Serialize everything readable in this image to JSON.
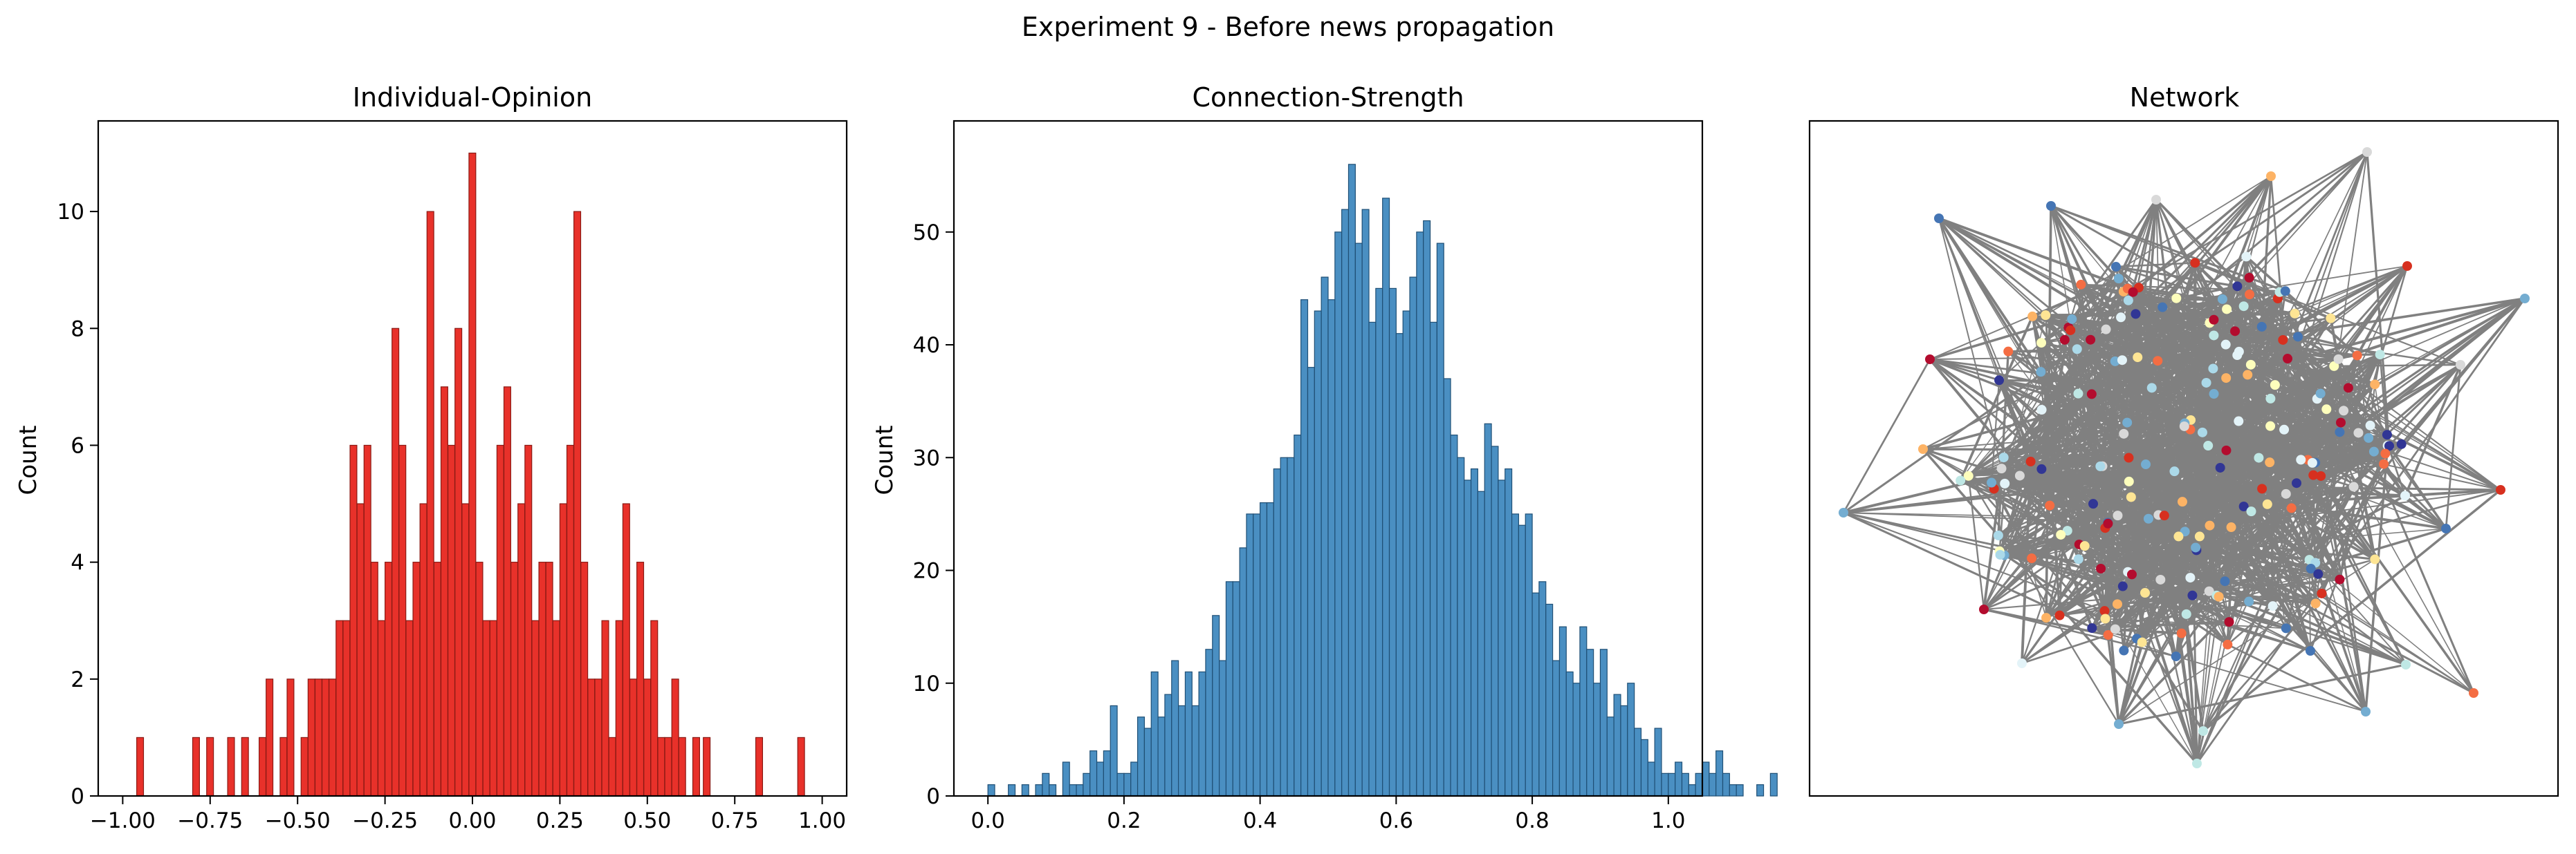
{
  "figure": {
    "title": "Experiment 9 - Before news propagation"
  },
  "colors": {
    "opinion_fill": "#e8312a",
    "opinion_edge": "#8a1a14",
    "strength_fill": "#4a8fc2",
    "strength_edge": "#1f4f75",
    "network_edge": "#808080"
  },
  "chart_data": [
    {
      "type": "bar",
      "title": "Individual-Opinion",
      "xlabel": "",
      "ylabel": "Count",
      "xlim": [
        -1.07,
        1.07
      ],
      "ylim": [
        0,
        11.55
      ],
      "grid": false,
      "bin_width": 0.0195,
      "xticks": [
        -1.0,
        -0.75,
        -0.5,
        -0.25,
        0.0,
        0.25,
        0.5,
        0.75,
        1.0
      ],
      "xtick_labels": [
        "−1.00",
        "−0.75",
        "−0.50",
        "−0.25",
        "0.00",
        "0.25",
        "0.50",
        "0.75",
        "1.00"
      ],
      "yticks": [
        0,
        2,
        4,
        6,
        8,
        10
      ],
      "ytick_labels": [
        "0",
        "2",
        "4",
        "6",
        "8",
        "10"
      ],
      "bins": [
        [
          -0.96,
          1
        ],
        [
          -0.8,
          1
        ],
        [
          -0.76,
          1
        ],
        [
          -0.7,
          1
        ],
        [
          -0.66,
          1
        ],
        [
          -0.61,
          1
        ],
        [
          -0.59,
          2
        ],
        [
          -0.55,
          1
        ],
        [
          -0.53,
          2
        ],
        [
          -0.49,
          1
        ],
        [
          -0.47,
          2
        ],
        [
          -0.45,
          2
        ],
        [
          -0.43,
          2
        ],
        [
          -0.41,
          2
        ],
        [
          -0.39,
          3
        ],
        [
          -0.37,
          3
        ],
        [
          -0.35,
          6
        ],
        [
          -0.33,
          5
        ],
        [
          -0.31,
          6
        ],
        [
          -0.29,
          4
        ],
        [
          -0.27,
          3
        ],
        [
          -0.25,
          4
        ],
        [
          -0.23,
          8
        ],
        [
          -0.21,
          6
        ],
        [
          -0.19,
          3
        ],
        [
          -0.17,
          4
        ],
        [
          -0.15,
          5
        ],
        [
          -0.13,
          10
        ],
        [
          -0.11,
          4
        ],
        [
          -0.09,
          7
        ],
        [
          -0.07,
          6
        ],
        [
          -0.05,
          8
        ],
        [
          -0.03,
          5
        ],
        [
          -0.01,
          11
        ],
        [
          0.01,
          4
        ],
        [
          0.03,
          3
        ],
        [
          0.05,
          3
        ],
        [
          0.07,
          6
        ],
        [
          0.09,
          7
        ],
        [
          0.11,
          4
        ],
        [
          0.13,
          5
        ],
        [
          0.15,
          6
        ],
        [
          0.17,
          3
        ],
        [
          0.19,
          4
        ],
        [
          0.21,
          4
        ],
        [
          0.23,
          3
        ],
        [
          0.25,
          5
        ],
        [
          0.27,
          6
        ],
        [
          0.29,
          10
        ],
        [
          0.31,
          4
        ],
        [
          0.33,
          2
        ],
        [
          0.35,
          2
        ],
        [
          0.37,
          3
        ],
        [
          0.39,
          1
        ],
        [
          0.41,
          3
        ],
        [
          0.43,
          5
        ],
        [
          0.45,
          2
        ],
        [
          0.47,
          4
        ],
        [
          0.49,
          2
        ],
        [
          0.51,
          3
        ],
        [
          0.53,
          1
        ],
        [
          0.55,
          1
        ],
        [
          0.57,
          2
        ],
        [
          0.59,
          1
        ],
        [
          0.63,
          1
        ],
        [
          0.66,
          1
        ],
        [
          0.81,
          1
        ],
        [
          0.93,
          1
        ]
      ]
    },
    {
      "type": "bar",
      "title": "Connection-Strength",
      "xlabel": "",
      "ylabel": "Count",
      "xlim": [
        -0.05,
        1.05
      ],
      "ylim": [
        0,
        59.85
      ],
      "grid": false,
      "bin_width": 0.01,
      "xticks": [
        0.0,
        0.2,
        0.4,
        0.6,
        0.8,
        1.0
      ],
      "xtick_labels": [
        "0.0",
        "0.2",
        "0.4",
        "0.6",
        "0.8",
        "1.0"
      ],
      "yticks": [
        0,
        10,
        20,
        30,
        40,
        50
      ],
      "ytick_labels": [
        "0",
        "10",
        "20",
        "30",
        "40",
        "50"
      ],
      "bin_start": 0.0,
      "counts": [
        1,
        0,
        0,
        1,
        0,
        1,
        0,
        1,
        2,
        1,
        0,
        3,
        1,
        1,
        2,
        4,
        3,
        4,
        8,
        2,
        2,
        3,
        7,
        6,
        11,
        7,
        9,
        12,
        8,
        11,
        8,
        11,
        13,
        16,
        12,
        19,
        19,
        22,
        25,
        25,
        26,
        26,
        29,
        30,
        30,
        32,
        44,
        38,
        43,
        46,
        44,
        50,
        52,
        56,
        49,
        52,
        42,
        45,
        53,
        45,
        41,
        43,
        46,
        50,
        51,
        42,
        49,
        37,
        32,
        30,
        28,
        29,
        27,
        33,
        31,
        28,
        29,
        25,
        24,
        25,
        18,
        19,
        17,
        12,
        15,
        11,
        10,
        15,
        13,
        10,
        13,
        7,
        9,
        8,
        10,
        6,
        5,
        3,
        6,
        2,
        2,
        3,
        2,
        1,
        2,
        3,
        2,
        4,
        2,
        1,
        1,
        0,
        0,
        1,
        0,
        2
      ]
    },
    {
      "type": "network",
      "title": "Network",
      "node_palette": [
        "#fdfebc",
        "#fee594",
        "#fdb365",
        "#f46d43",
        "#d7301f",
        "#b30c2e",
        "#e3f3f8",
        "#abd9e9",
        "#74add1",
        "#4575b4",
        "#313695",
        "#d9d9d9",
        "#bfe8e5"
      ]
    }
  ]
}
